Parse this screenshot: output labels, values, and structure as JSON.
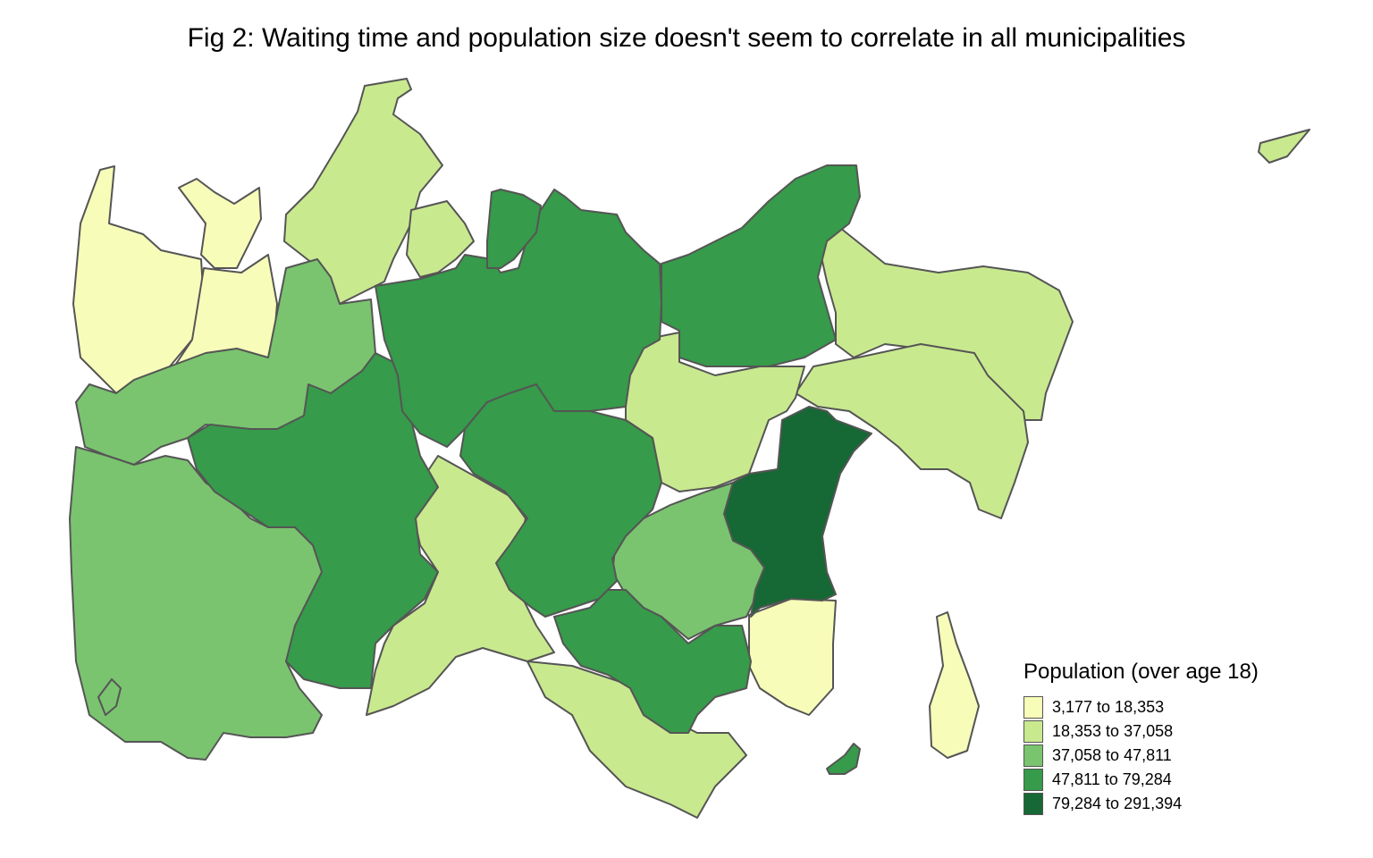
{
  "figure": {
    "title": "Fig 2: Waiting time and population size doesn't seem to correlate in all municipalities"
  },
  "legend": {
    "title": "Population (over age 18)",
    "classes": [
      {
        "label": "3,177 to 18,353",
        "color": "#f7fcb9"
      },
      {
        "label": "18,353 to 37,058",
        "color": "#c9e98f"
      },
      {
        "label": "37,058 to 47,811",
        "color": "#7ac46f"
      },
      {
        "label": "47,811 to 79,284",
        "color": "#369b4a"
      },
      {
        "label": "79,284 to 291,394",
        "color": "#166835"
      }
    ]
  },
  "map_data": {
    "type": "choropleth",
    "variable": "Population (over age 18)",
    "regions": [
      {
        "class": 0
      },
      {
        "class": 0
      },
      {
        "class": 0
      },
      {
        "class": 0
      },
      {
        "class": 0
      },
      {
        "class": 1
      },
      {
        "class": 1
      },
      {
        "class": 1
      },
      {
        "class": 1
      },
      {
        "class": 1
      },
      {
        "class": 1
      },
      {
        "class": 1
      },
      {
        "class": 1
      },
      {
        "class": 2
      },
      {
        "class": 2
      },
      {
        "class": 2
      },
      {
        "class": 2
      },
      {
        "class": 3
      },
      {
        "class": 3
      },
      {
        "class": 3
      },
      {
        "class": 3
      },
      {
        "class": 3
      },
      {
        "class": 3
      },
      {
        "class": 3
      },
      {
        "class": 4
      }
    ]
  }
}
